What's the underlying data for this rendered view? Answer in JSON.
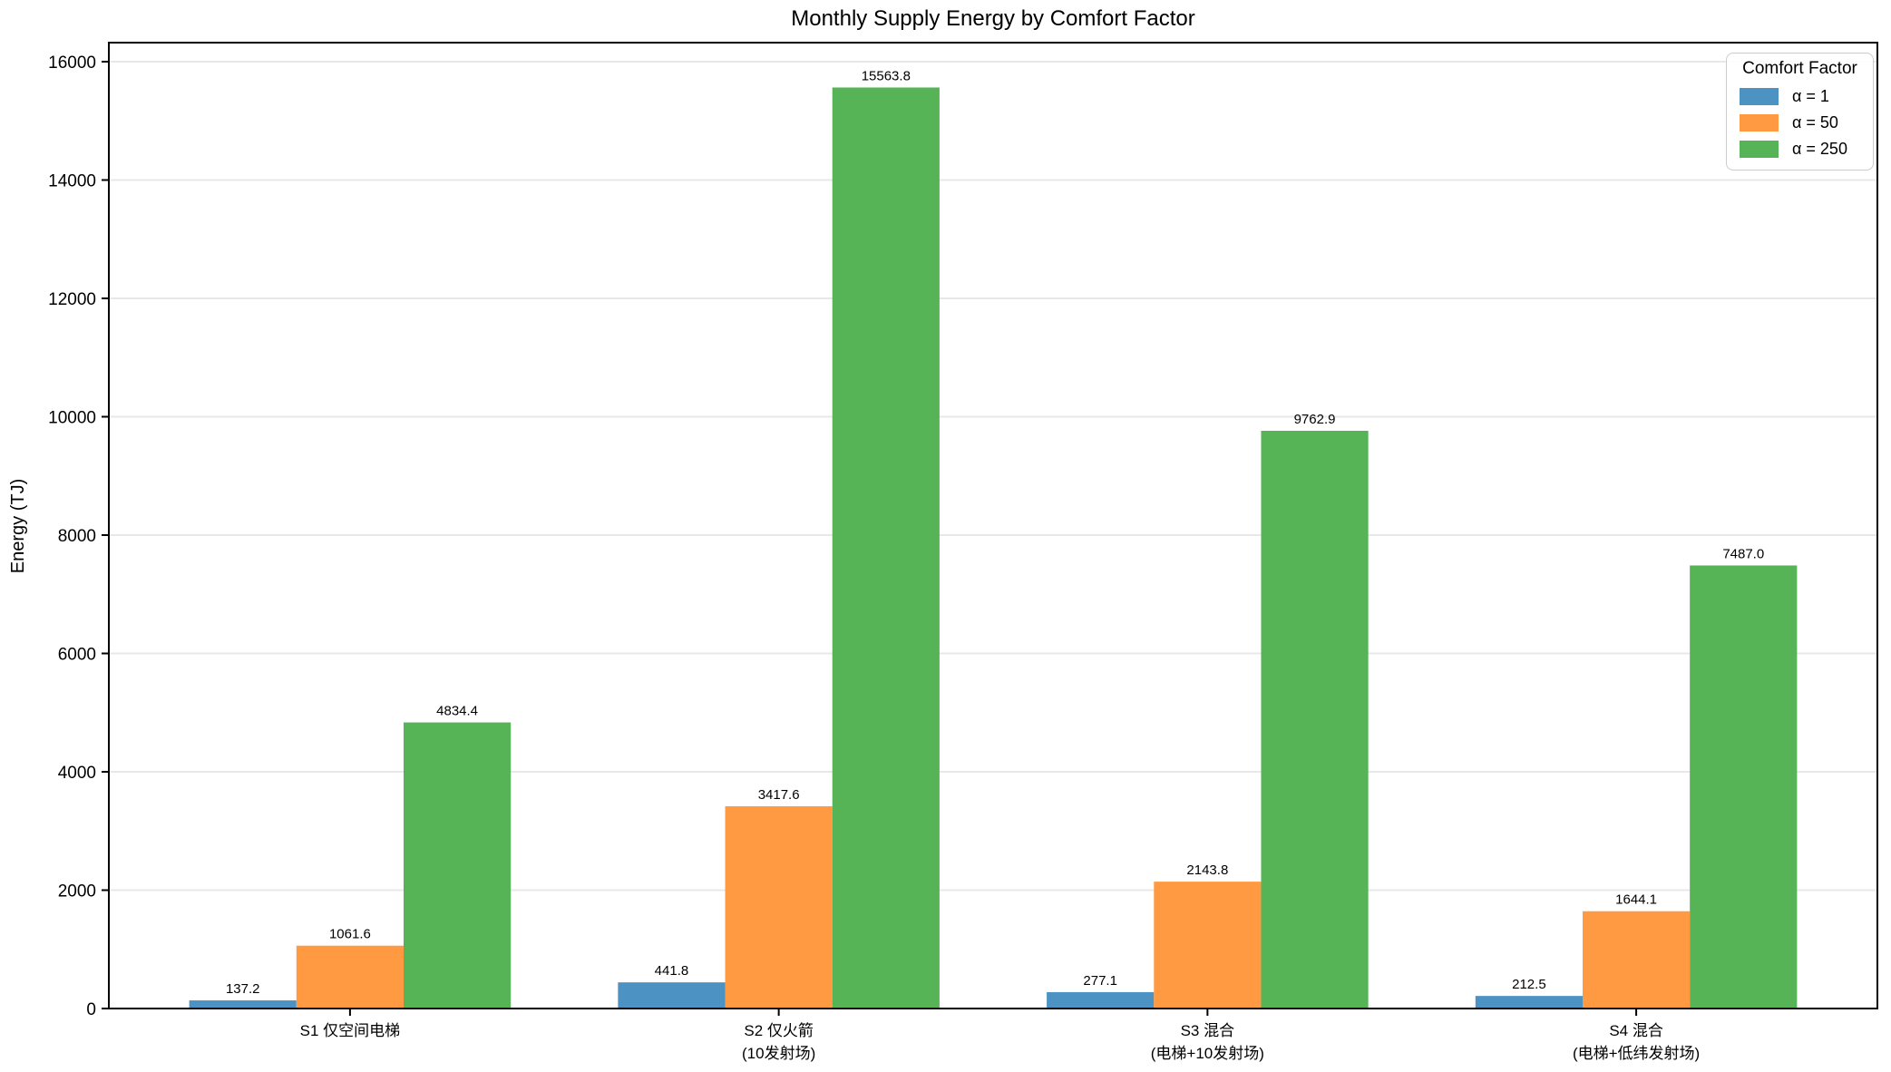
{
  "chart_data": {
    "type": "bar",
    "title": "Monthly Supply Energy by Comfort Factor",
    "xlabel": "",
    "ylabel": "Energy (TJ)",
    "categories": [
      "S1 仅空间电梯",
      "S2 仅火箭\n(10发射场)",
      "S3 混合\n(电梯+10发射场)",
      "S4 混合\n(电梯+低纬发射场)"
    ],
    "series": [
      {
        "name": "α = 1",
        "color": "#4c92c3",
        "values": [
          137.2,
          441.8,
          277.1,
          212.5
        ]
      },
      {
        "name": "α = 50",
        "color": "#ff9a42",
        "values": [
          1061.6,
          3417.6,
          2143.8,
          1644.1
        ]
      },
      {
        "name": "α = 250",
        "color": "#56b356",
        "values": [
          4834.4,
          15563.8,
          9762.9,
          7487.0
        ]
      }
    ],
    "legend": {
      "title": "Comfort Factor",
      "position": "upper right"
    },
    "yticks": [
      0,
      2000,
      4000,
      6000,
      8000,
      10000,
      12000,
      14000,
      16000
    ],
    "ylim": [
      0,
      16322
    ],
    "grid": true,
    "grid_color": "#e8e8e8",
    "spine_color": "#000000",
    "bar_value_labels": true,
    "value_decimals": 1
  }
}
